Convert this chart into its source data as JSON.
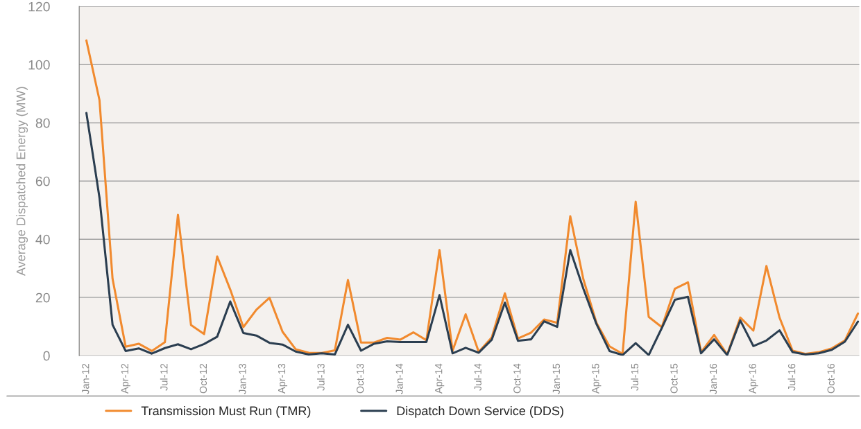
{
  "chart_data": {
    "type": "line",
    "ylabel": "Average Dispatched Energy (MW)",
    "categories": [
      "Jan-12",
      null,
      null,
      "Apr-12",
      null,
      null,
      "Jul-12",
      null,
      null,
      "Oct-12",
      null,
      null,
      "Jan-13",
      null,
      null,
      "Apr-13",
      null,
      null,
      "Jul-13",
      null,
      null,
      "Oct-13",
      null,
      null,
      "Jan-14",
      null,
      null,
      "Apr-14",
      null,
      null,
      "Jul-14",
      null,
      null,
      "Oct-14",
      null,
      null,
      "Jan-15",
      null,
      null,
      "Apr-15",
      null,
      null,
      "Jul-15",
      null,
      null,
      "Oct-15",
      null,
      null,
      "Jan-16",
      null,
      null,
      "Apr-16",
      null,
      null,
      "Jul-16",
      null,
      null,
      "Oct-16",
      null,
      null
    ],
    "series": [
      {
        "name": "Transmission Must Run (TMR)",
        "color": "#f18a2e",
        "values": [
          108.3,
          87.8,
          26.4,
          3.1,
          4.1,
          1.6,
          4.6,
          48.4,
          10.5,
          7.4,
          34.1,
          22.7,
          9.8,
          15.8,
          19.9,
          8.2,
          2.2,
          1.0,
          0.9,
          1.8,
          26.0,
          4.5,
          4.5,
          6.1,
          5.5,
          8.0,
          5.3,
          36.3,
          1.7,
          14.2,
          1.3,
          6.3,
          21.4,
          5.9,
          7.9,
          12.4,
          11.3,
          47.9,
          26.3,
          11.3,
          3.2,
          0.6,
          52.9,
          13.3,
          9.8,
          23.0,
          25.2,
          1.2,
          7.1,
          0.4,
          13.1,
          8.6,
          30.8,
          13.1,
          1.7,
          0.6,
          1.2,
          2.5,
          5.2,
          14.5
        ]
      },
      {
        "name": "Dispatch Down Service (DDS)",
        "color": "#2b3e50",
        "values": [
          83.4,
          54.3,
          10.6,
          1.6,
          2.5,
          0.7,
          2.6,
          3.9,
          2.2,
          4.0,
          6.5,
          18.6,
          7.8,
          6.9,
          4.4,
          3.8,
          1.4,
          0.4,
          0.8,
          0.4,
          10.6,
          1.7,
          4.1,
          4.9,
          4.7,
          4.7,
          4.7,
          20.8,
          0.8,
          2.7,
          1.0,
          5.5,
          18.2,
          5.1,
          5.6,
          11.8,
          9.9,
          36.3,
          23.0,
          10.9,
          1.6,
          0.2,
          4.3,
          0.2,
          9.5,
          19.2,
          20.2,
          0.8,
          5.6,
          0.2,
          12.1,
          3.3,
          5.2,
          8.7,
          1.2,
          0.4,
          0.8,
          2.0,
          4.8,
          11.7
        ]
      }
    ],
    "ylim": [
      0,
      120
    ],
    "yticks": [
      0,
      20,
      40,
      60,
      80,
      100,
      120
    ],
    "grid": "y",
    "legend": "bottom",
    "marker": "none",
    "line_style": "solid"
  }
}
